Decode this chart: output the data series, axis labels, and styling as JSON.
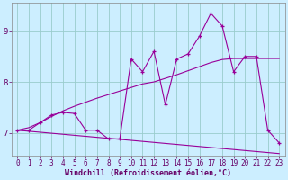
{
  "xlabel": "Windchill (Refroidissement éolien,°C)",
  "bg_color": "#cceeff",
  "line_color": "#990099",
  "grid_color": "#99cccc",
  "x": [
    0,
    1,
    2,
    3,
    4,
    5,
    6,
    7,
    8,
    9,
    10,
    11,
    12,
    13,
    14,
    15,
    16,
    17,
    18,
    19,
    20,
    21,
    22,
    23
  ],
  "y_main": [
    7.05,
    7.05,
    7.2,
    7.35,
    7.4,
    7.38,
    7.05,
    7.05,
    6.88,
    6.88,
    8.45,
    8.2,
    8.6,
    7.55,
    8.45,
    8.55,
    8.9,
    9.35,
    9.1,
    8.2,
    8.5,
    8.5,
    7.05,
    6.8
  ],
  "y_upper": [
    7.05,
    7.1,
    7.2,
    7.32,
    7.43,
    7.52,
    7.6,
    7.68,
    7.75,
    7.82,
    7.89,
    7.96,
    8.0,
    8.07,
    8.14,
    8.22,
    8.3,
    8.38,
    8.44,
    8.46,
    8.46,
    8.46,
    8.46,
    8.46
  ],
  "y_lower": [
    7.05,
    7.03,
    7.01,
    6.99,
    6.97,
    6.95,
    6.93,
    6.91,
    6.89,
    6.87,
    6.85,
    6.83,
    6.81,
    6.79,
    6.77,
    6.75,
    6.73,
    6.71,
    6.69,
    6.67,
    6.65,
    6.63,
    6.61,
    6.59
  ],
  "ylim_min": 6.55,
  "ylim_max": 9.55,
  "xlim_min": -0.5,
  "xlim_max": 23.5,
  "yticks": [
    7,
    8,
    9
  ],
  "xticks": [
    0,
    1,
    2,
    3,
    4,
    5,
    6,
    7,
    8,
    9,
    10,
    11,
    12,
    13,
    14,
    15,
    16,
    17,
    18,
    19,
    20,
    21,
    22,
    23
  ],
  "tick_fontsize": 5.5,
  "ylabel_fontsize": 6.0,
  "xlabel_fontsize": 6.0,
  "tick_color": "#660066",
  "label_color": "#660066"
}
